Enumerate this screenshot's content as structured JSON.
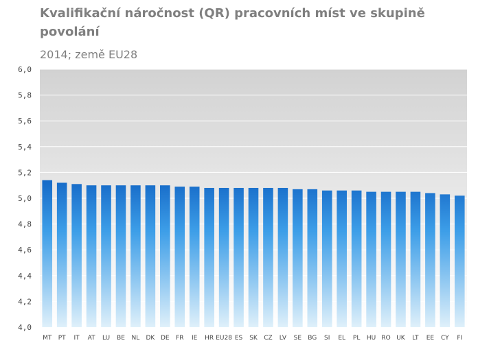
{
  "chart_data": {
    "type": "bar",
    "title": "Kvalifikační náročnost (QR) pracovních míst ve skupině povolání",
    "subtitle": "2014; země EU28",
    "xlabel": "",
    "ylabel": "",
    "ylim": [
      4.0,
      6.0
    ],
    "yticks": [
      "4,0",
      "4,2",
      "4,4",
      "4,6",
      "4,8",
      "5,0",
      "5,2",
      "5,4",
      "5,6",
      "5,8",
      "6,0"
    ],
    "grid": true,
    "categories": [
      "MT",
      "PT",
      "IT",
      "AT",
      "LU",
      "BE",
      "NL",
      "DK",
      "DE",
      "FR",
      "IE",
      "HR",
      "EU28",
      "ES",
      "SK",
      "CZ",
      "LV",
      "SE",
      "BG",
      "SI",
      "EL",
      "PL",
      "HU",
      "RO",
      "UK",
      "LT",
      "EE",
      "CY",
      "FI"
    ],
    "values": [
      5.14,
      5.12,
      5.11,
      5.1,
      5.1,
      5.1,
      5.1,
      5.1,
      5.1,
      5.09,
      5.09,
      5.08,
      5.08,
      5.08,
      5.08,
      5.08,
      5.08,
      5.07,
      5.07,
      5.06,
      5.06,
      5.06,
      5.05,
      5.05,
      5.05,
      5.05,
      5.04,
      5.03,
      5.02
    ],
    "colors": {
      "bar_top": "#1569c7",
      "bar_mid": "#3d9ee8",
      "bar_bottom": "#dff0fa",
      "plot_bg_top": "#d2d2d2",
      "plot_bg_bottom": "#ffffff",
      "grid": "#ffffff"
    }
  }
}
